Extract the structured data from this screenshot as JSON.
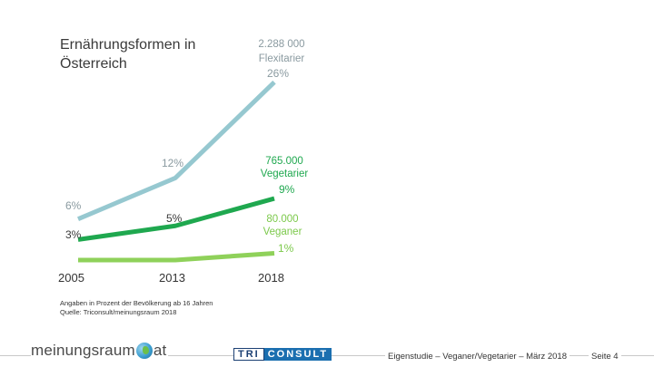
{
  "title": "Ernährungsformen in Österreich",
  "chart_data": {
    "type": "line",
    "x": [
      "2005",
      "2013",
      "2018"
    ],
    "series": [
      {
        "name": "Flexitarier",
        "values": [
          6,
          12,
          26
        ],
        "color": "#96c8d0",
        "point_labels": [
          "6%",
          "12%",
          "26%"
        ],
        "count_label": "2.288 000",
        "group_label": "Flexitarier",
        "label_color": "#8a9aa0"
      },
      {
        "name": "Vegetarier",
        "values": [
          3,
          5,
          9
        ],
        "color": "#1fa84f",
        "point_labels": [
          "3%",
          "5%",
          "9%"
        ],
        "count_label": "765.000",
        "group_label": "Vegetarier",
        "label_color": "#1fa84f"
      },
      {
        "name": "Veganer",
        "values": [
          0,
          0,
          1
        ],
        "color": "#8fd15a",
        "point_labels": [
          "",
          "",
          "1%"
        ],
        "count_label": "80.000",
        "group_label": "Veganer",
        "label_color": "#7cc94b"
      }
    ],
    "xlabel": "",
    "ylabel": "",
    "grid": false,
    "legend": "inline-right"
  },
  "note": {
    "line1": "Angaben in Prozent der Bevölkerung ab 16 Jahren",
    "line2": "Quelle: Triconsult/meinungsraum 2018"
  },
  "footer": {
    "logo_left": {
      "part1": "meinungsraum",
      "part2": "at"
    },
    "logo_center": {
      "part1": "TRI",
      "part2": "CONSULT"
    },
    "study": "Eigenstudie – Veganer/Vegetarier – März 2018",
    "page": "Seite 4"
  }
}
